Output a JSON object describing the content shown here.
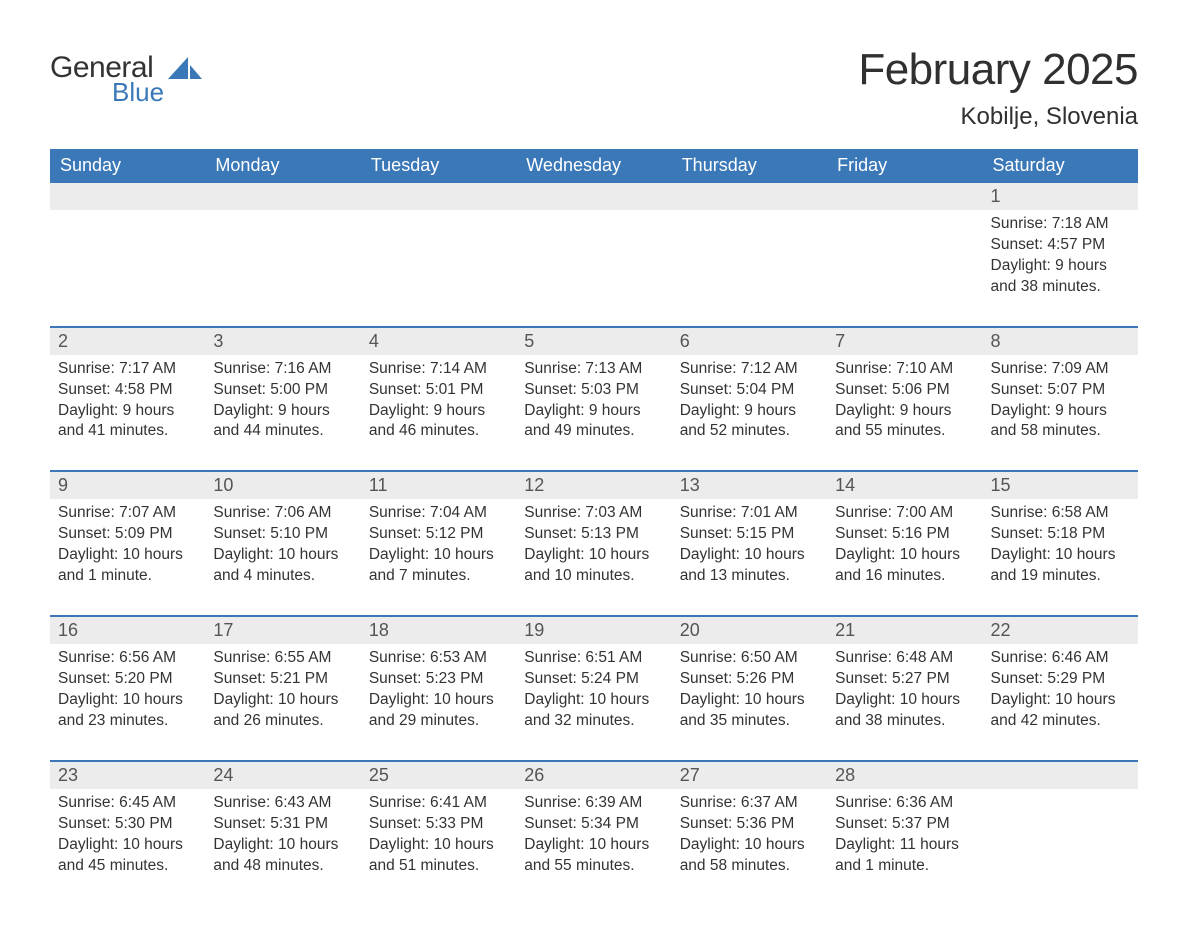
{
  "logo": {
    "text_general": "General",
    "text_blue": "Blue",
    "sail_color": "#3b78b8"
  },
  "title": "February 2025",
  "location": "Kobilje, Slovenia",
  "colors": {
    "header_bg": "#3b78b8",
    "header_text": "#ffffff",
    "daynum_bg": "#ececec",
    "daynum_text": "#555555",
    "body_text": "#333333",
    "rule": "#3b78b8"
  },
  "typography": {
    "title_fontsize": 44,
    "location_fontsize": 24,
    "header_fontsize": 18,
    "daynum_fontsize": 18,
    "detail_fontsize": 15.5
  },
  "weekday_labels": [
    "Sunday",
    "Monday",
    "Tuesday",
    "Wednesday",
    "Thursday",
    "Friday",
    "Saturday"
  ],
  "weeks": [
    [
      {
        "day": null
      },
      {
        "day": null
      },
      {
        "day": null
      },
      {
        "day": null
      },
      {
        "day": null
      },
      {
        "day": null
      },
      {
        "day": 1,
        "sunrise": "Sunrise: 7:18 AM",
        "sunset": "Sunset: 4:57 PM",
        "daylight": "Daylight: 9 hours and 38 minutes."
      }
    ],
    [
      {
        "day": 2,
        "sunrise": "Sunrise: 7:17 AM",
        "sunset": "Sunset: 4:58 PM",
        "daylight": "Daylight: 9 hours and 41 minutes."
      },
      {
        "day": 3,
        "sunrise": "Sunrise: 7:16 AM",
        "sunset": "Sunset: 5:00 PM",
        "daylight": "Daylight: 9 hours and 44 minutes."
      },
      {
        "day": 4,
        "sunrise": "Sunrise: 7:14 AM",
        "sunset": "Sunset: 5:01 PM",
        "daylight": "Daylight: 9 hours and 46 minutes."
      },
      {
        "day": 5,
        "sunrise": "Sunrise: 7:13 AM",
        "sunset": "Sunset: 5:03 PM",
        "daylight": "Daylight: 9 hours and 49 minutes."
      },
      {
        "day": 6,
        "sunrise": "Sunrise: 7:12 AM",
        "sunset": "Sunset: 5:04 PM",
        "daylight": "Daylight: 9 hours and 52 minutes."
      },
      {
        "day": 7,
        "sunrise": "Sunrise: 7:10 AM",
        "sunset": "Sunset: 5:06 PM",
        "daylight": "Daylight: 9 hours and 55 minutes."
      },
      {
        "day": 8,
        "sunrise": "Sunrise: 7:09 AM",
        "sunset": "Sunset: 5:07 PM",
        "daylight": "Daylight: 9 hours and 58 minutes."
      }
    ],
    [
      {
        "day": 9,
        "sunrise": "Sunrise: 7:07 AM",
        "sunset": "Sunset: 5:09 PM",
        "daylight": "Daylight: 10 hours and 1 minute."
      },
      {
        "day": 10,
        "sunrise": "Sunrise: 7:06 AM",
        "sunset": "Sunset: 5:10 PM",
        "daylight": "Daylight: 10 hours and 4 minutes."
      },
      {
        "day": 11,
        "sunrise": "Sunrise: 7:04 AM",
        "sunset": "Sunset: 5:12 PM",
        "daylight": "Daylight: 10 hours and 7 minutes."
      },
      {
        "day": 12,
        "sunrise": "Sunrise: 7:03 AM",
        "sunset": "Sunset: 5:13 PM",
        "daylight": "Daylight: 10 hours and 10 minutes."
      },
      {
        "day": 13,
        "sunrise": "Sunrise: 7:01 AM",
        "sunset": "Sunset: 5:15 PM",
        "daylight": "Daylight: 10 hours and 13 minutes."
      },
      {
        "day": 14,
        "sunrise": "Sunrise: 7:00 AM",
        "sunset": "Sunset: 5:16 PM",
        "daylight": "Daylight: 10 hours and 16 minutes."
      },
      {
        "day": 15,
        "sunrise": "Sunrise: 6:58 AM",
        "sunset": "Sunset: 5:18 PM",
        "daylight": "Daylight: 10 hours and 19 minutes."
      }
    ],
    [
      {
        "day": 16,
        "sunrise": "Sunrise: 6:56 AM",
        "sunset": "Sunset: 5:20 PM",
        "daylight": "Daylight: 10 hours and 23 minutes."
      },
      {
        "day": 17,
        "sunrise": "Sunrise: 6:55 AM",
        "sunset": "Sunset: 5:21 PM",
        "daylight": "Daylight: 10 hours and 26 minutes."
      },
      {
        "day": 18,
        "sunrise": "Sunrise: 6:53 AM",
        "sunset": "Sunset: 5:23 PM",
        "daylight": "Daylight: 10 hours and 29 minutes."
      },
      {
        "day": 19,
        "sunrise": "Sunrise: 6:51 AM",
        "sunset": "Sunset: 5:24 PM",
        "daylight": "Daylight: 10 hours and 32 minutes."
      },
      {
        "day": 20,
        "sunrise": "Sunrise: 6:50 AM",
        "sunset": "Sunset: 5:26 PM",
        "daylight": "Daylight: 10 hours and 35 minutes."
      },
      {
        "day": 21,
        "sunrise": "Sunrise: 6:48 AM",
        "sunset": "Sunset: 5:27 PM",
        "daylight": "Daylight: 10 hours and 38 minutes."
      },
      {
        "day": 22,
        "sunrise": "Sunrise: 6:46 AM",
        "sunset": "Sunset: 5:29 PM",
        "daylight": "Daylight: 10 hours and 42 minutes."
      }
    ],
    [
      {
        "day": 23,
        "sunrise": "Sunrise: 6:45 AM",
        "sunset": "Sunset: 5:30 PM",
        "daylight": "Daylight: 10 hours and 45 minutes."
      },
      {
        "day": 24,
        "sunrise": "Sunrise: 6:43 AM",
        "sunset": "Sunset: 5:31 PM",
        "daylight": "Daylight: 10 hours and 48 minutes."
      },
      {
        "day": 25,
        "sunrise": "Sunrise: 6:41 AM",
        "sunset": "Sunset: 5:33 PM",
        "daylight": "Daylight: 10 hours and 51 minutes."
      },
      {
        "day": 26,
        "sunrise": "Sunrise: 6:39 AM",
        "sunset": "Sunset: 5:34 PM",
        "daylight": "Daylight: 10 hours and 55 minutes."
      },
      {
        "day": 27,
        "sunrise": "Sunrise: 6:37 AM",
        "sunset": "Sunset: 5:36 PM",
        "daylight": "Daylight: 10 hours and 58 minutes."
      },
      {
        "day": 28,
        "sunrise": "Sunrise: 6:36 AM",
        "sunset": "Sunset: 5:37 PM",
        "daylight": "Daylight: 11 hours and 1 minute."
      },
      {
        "day": null
      }
    ]
  ]
}
